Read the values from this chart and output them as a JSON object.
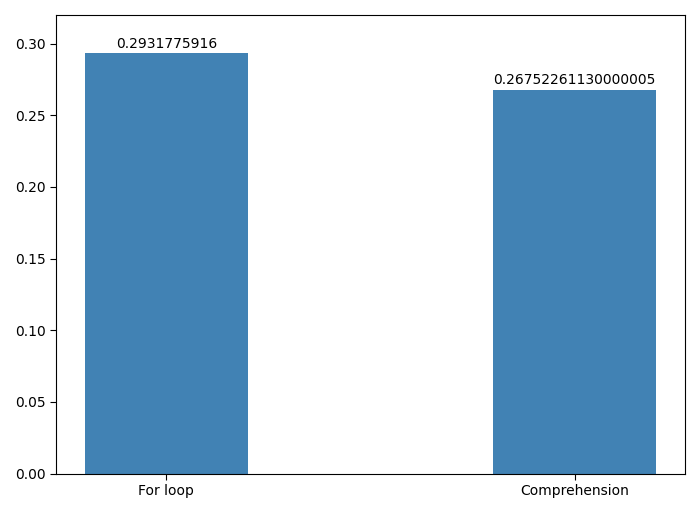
{
  "categories": [
    "For loop",
    "Comprehension"
  ],
  "values": [
    0.2931775916,
    0.26752261130000005
  ],
  "bar_color": "#4182b4",
  "ylim": [
    0,
    0.32
  ],
  "yticks": [
    0.0,
    0.05,
    0.1,
    0.15,
    0.2,
    0.25,
    0.3
  ],
  "bar_width": 0.4
}
